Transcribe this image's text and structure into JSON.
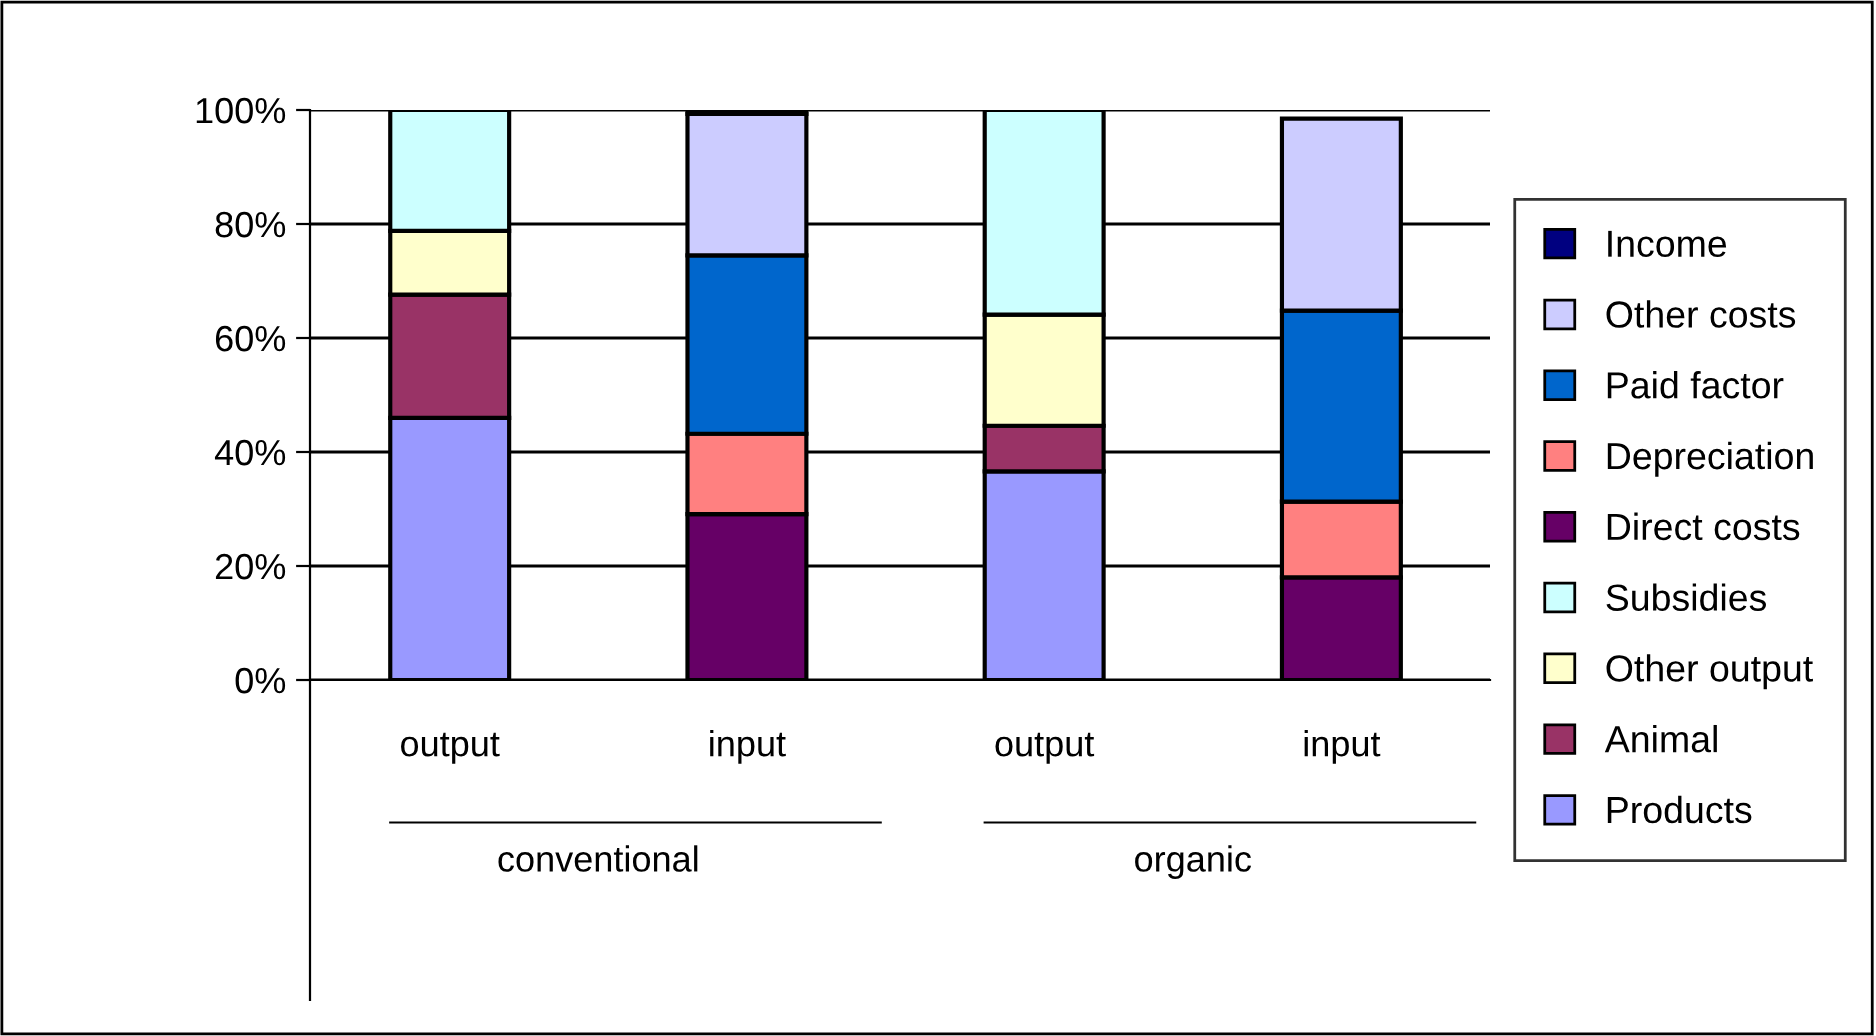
{
  "chart_data": {
    "type": "bar",
    "stacked": true,
    "categories": [
      "output",
      "input",
      "output",
      "input"
    ],
    "series": [
      {
        "name": "Products",
        "color": "#9999ff",
        "values": [
          46,
          null,
          36.6,
          null
        ]
      },
      {
        "name": "Animal",
        "color": "#993366",
        "values": [
          21.6,
          null,
          8,
          null
        ]
      },
      {
        "name": "Other output",
        "color": "#ffffcc",
        "values": [
          11.2,
          null,
          19.5,
          null
        ]
      },
      {
        "name": "Subsidies",
        "color": "#ccffff",
        "values": [
          21.2,
          null,
          35.9,
          null
        ]
      },
      {
        "name": "Direct costs",
        "color": "#660066",
        "values": [
          null,
          29.1,
          null,
          18
        ]
      },
      {
        "name": "Depreciation",
        "color": "#ff8080",
        "values": [
          null,
          14.1,
          null,
          13.3
        ]
      },
      {
        "name": "Paid factor",
        "color": "#0066cc",
        "values": [
          null,
          31.3,
          null,
          33.5
        ]
      },
      {
        "name": "Other costs",
        "color": "#ccccff",
        "values": [
          null,
          24.8,
          null,
          33.7
        ]
      },
      {
        "name": "Income",
        "color": "#000080",
        "values": [
          null,
          0.7,
          null,
          null
        ]
      }
    ],
    "annotations": [
      "conventional",
      "organic"
    ],
    "ylim": [
      0,
      100
    ],
    "yticks": [
      {
        "value": 0,
        "label": "0%"
      },
      {
        "value": 20,
        "label": "20%"
      },
      {
        "value": 40,
        "label": "40%"
      },
      {
        "value": 60,
        "label": "60%"
      },
      {
        "value": 80,
        "label": "80%"
      },
      {
        "value": 100,
        "label": "100%"
      }
    ],
    "grid": "y",
    "legend": "right"
  }
}
